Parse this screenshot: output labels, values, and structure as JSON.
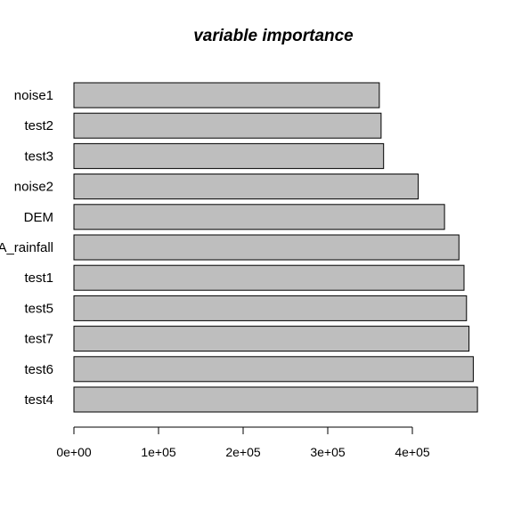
{
  "chart_data": {
    "type": "bar",
    "orientation": "horizontal",
    "title": "variable importance",
    "xlabel": "",
    "ylabel": "",
    "categories": [
      "noise1",
      "test2",
      "test3",
      "noise2",
      "DEM",
      "A_rainfall",
      "test1",
      "test5",
      "test7",
      "test6",
      "test4"
    ],
    "values": [
      361000,
      363000,
      366000,
      407000,
      438000,
      455000,
      461000,
      464000,
      467000,
      472000,
      477000
    ],
    "xlim": [
      0,
      480000
    ],
    "xticks": [
      0,
      100000,
      200000,
      300000,
      400000
    ],
    "xtick_labels": [
      "0e+00",
      "1e+05",
      "2e+05",
      "3e+05",
      "4e+05"
    ],
    "grid": false,
    "colors": {
      "bar_fill": "#bebebe",
      "bar_stroke": "#000000"
    }
  }
}
